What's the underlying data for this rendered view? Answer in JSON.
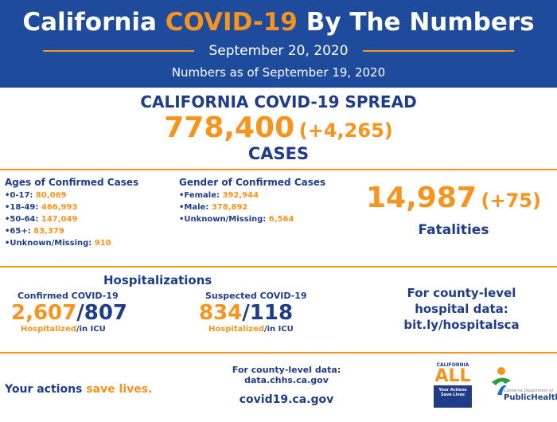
{
  "header": {
    "title": [
      "California",
      "COVID-19",
      "By The Numbers"
    ],
    "date": "September 20, 2020",
    "as_of": "Numbers as of September 19, 2020"
  },
  "spread": {
    "title": "CALIFORNIA COVID-19 SPREAD",
    "cases": "778,400",
    "change": "(+4,265)",
    "label": "CASES"
  },
  "ages": {
    "title": "Ages of Confirmed Cases",
    "items": [
      [
        "0-17:",
        "80,069"
      ],
      [
        "18-49:",
        "466,993"
      ],
      [
        "50-64:",
        "147,049"
      ],
      [
        "65+:",
        "83,379"
      ],
      [
        "Unknown/Missing:",
        "910"
      ]
    ]
  },
  "gender": {
    "title": "Gender of Confirmed Cases",
    "items": [
      [
        "Female:",
        "392,944"
      ],
      [
        "Male:",
        "378,892"
      ],
      [
        "Unknown/Missing:",
        "6,564"
      ]
    ]
  },
  "fatalities": {
    "count": "14,987",
    "change": "(+75)",
    "label": "Fatalities"
  },
  "hospitalizations": {
    "title": "Hospitalizations",
    "confirmed": {
      "title": "Confirmed COVID-19",
      "hospitalized": "2,607",
      "icu": "/807",
      "label_hosp": "Hospitalized",
      "label_icu": "/in ICU"
    },
    "suspected": {
      "title": "Suspected COVID-19",
      "hospitalized": "834",
      "icu": "/118",
      "label_hosp": "Hospitalized",
      "label_icu": "/in ICU"
    }
  },
  "county_hospital": [
    "For county-level",
    "hospital data:",
    "bit.ly/hospitalsca"
  ],
  "footer": {
    "slogan": [
      "Your actions",
      "save lives."
    ],
    "county_data": "For county-level data:",
    "data_url": "data.chhs.ca.gov",
    "site": "covid19.ca.gov",
    "logo_ca": {
      "top": "CALIFORNIA",
      "main": "ALL",
      "sub": "Your Actions Save Lives"
    },
    "logo_cdph": {
      "small": "California Department of",
      "main": "PublicHealth"
    }
  }
}
